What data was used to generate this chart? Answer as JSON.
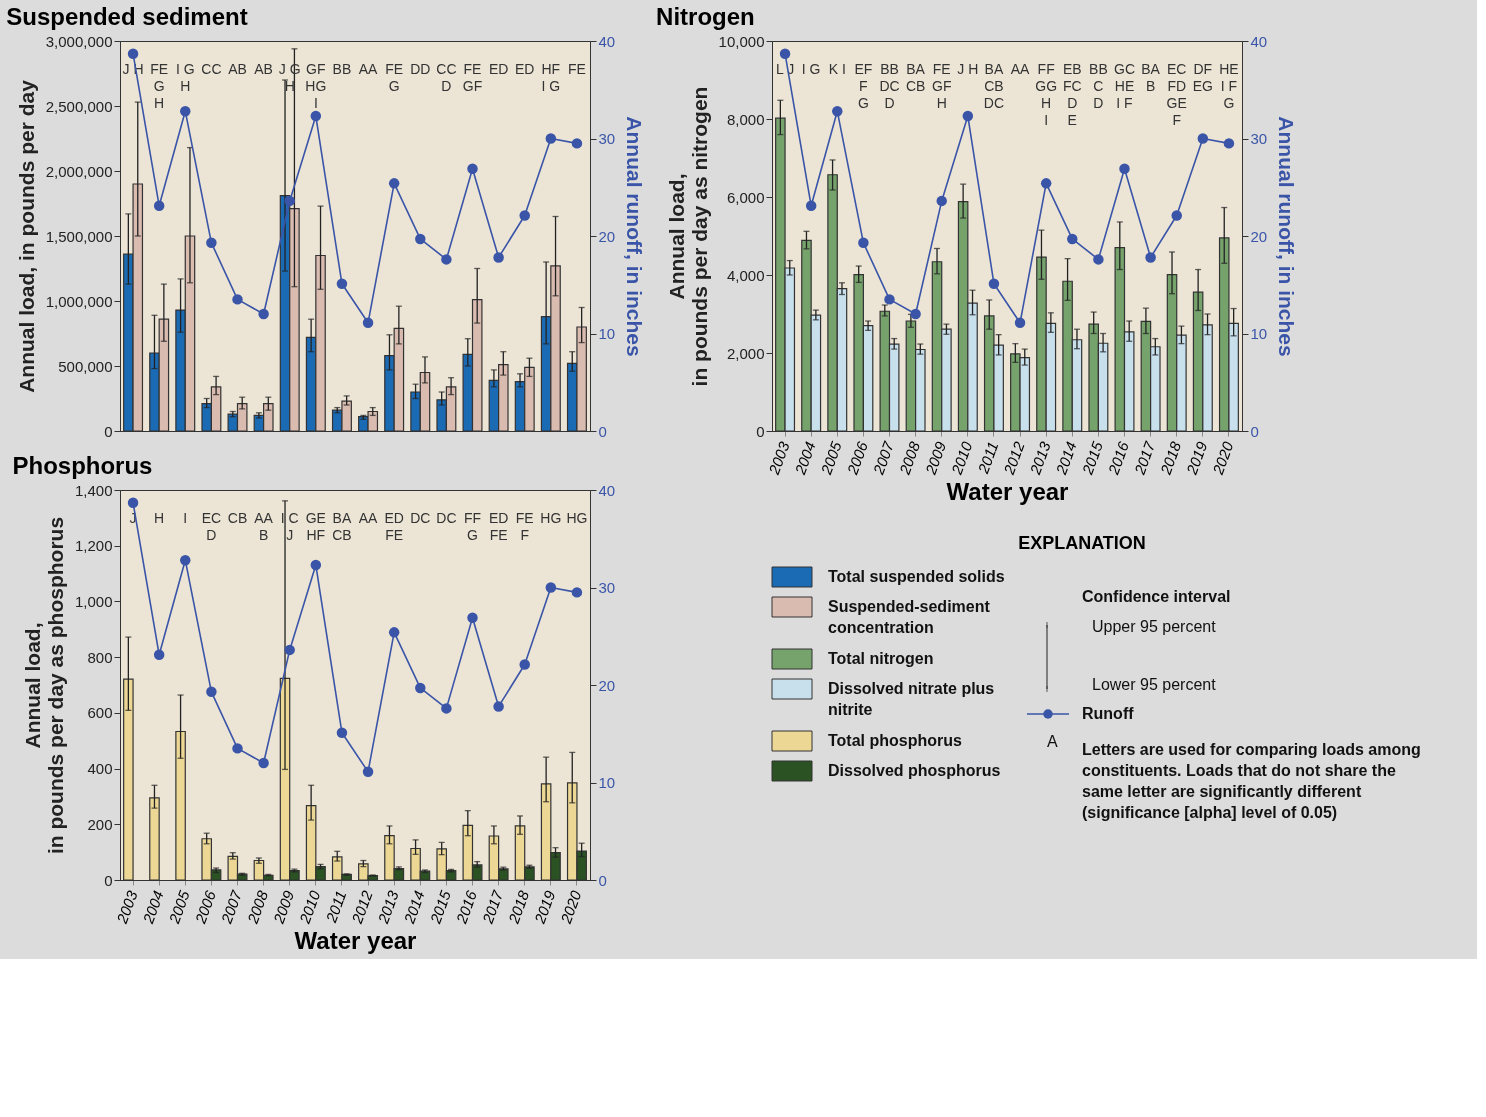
{
  "chart_data": [
    {
      "type": "bar",
      "title": "Suspended sediment",
      "ylabel": "Annual load, in pounds per day",
      "y2label": "Annual runoff, in inches",
      "categories": [
        "2003",
        "2004",
        "2005",
        "2006",
        "2007",
        "2008",
        "2009",
        "2010",
        "2011",
        "2012",
        "2013",
        "2014",
        "2015",
        "2016",
        "2017",
        "2018",
        "2019",
        "2020"
      ],
      "ylim": [
        0,
        3000000
      ],
      "yticks": [
        0,
        {
          "value": 500000,
          "label": "500,000"
        },
        {
          "value": 1000000,
          "label": "1,000,000"
        },
        {
          "value": 1500000,
          "label": "1,500,000"
        },
        {
          "value": 2000000,
          "label": "2,000,000"
        },
        {
          "value": 2500000,
          "label": "2,500,000"
        },
        {
          "value": 3000000,
          "label": "3,000,000"
        }
      ],
      "y2lim": [
        0,
        40
      ],
      "y2ticks": [
        0,
        10,
        20,
        30,
        40
      ],
      "tick_labels": "y",
      "legend": "bottom right",
      "series": [
        {
          "name": "Total suspended solids",
          "color": "#1b6ab4",
          "values": [
            1360000,
            600000,
            930000,
            210000,
            130000,
            120000,
            1810000,
            720000,
            160000,
            110000,
            580000,
            300000,
            240000,
            590000,
            390000,
            380000,
            880000,
            520000
          ],
          "errors": [
            [
              1130000,
              1670000
            ],
            [
              480000,
              890000
            ],
            [
              760000,
              1170000
            ],
            [
              180000,
              250000
            ],
            [
              110000,
              150000
            ],
            [
              100000,
              140000
            ],
            [
              1230000,
              2700000
            ],
            [
              610000,
              860000
            ],
            [
              140000,
              180000
            ],
            [
              90000,
              120000
            ],
            [
              470000,
              740000
            ],
            [
              250000,
              360000
            ],
            [
              200000,
              300000
            ],
            [
              500000,
              710000
            ],
            [
              340000,
              470000
            ],
            [
              340000,
              440000
            ],
            [
              670000,
              1300000
            ],
            [
              460000,
              610000
            ]
          ]
        },
        {
          "name": "Suspended-sediment concentration",
          "color": "#d9bbb0",
          "values": [
            1900000,
            860000,
            1500000,
            340000,
            210000,
            210000,
            1710000,
            1350000,
            230000,
            150000,
            790000,
            450000,
            340000,
            1010000,
            510000,
            490000,
            1270000,
            800000
          ],
          "errors": [
            [
              1500000,
              2530000
            ],
            [
              690000,
              1130000
            ],
            [
              1140000,
              2180000
            ],
            [
              280000,
              420000
            ],
            [
              170000,
              260000
            ],
            [
              160000,
              260000
            ],
            [
              1110000,
              2940000
            ],
            [
              1090000,
              1730000
            ],
            [
              200000,
              270000
            ],
            [
              120000,
              180000
            ],
            [
              670000,
              960000
            ],
            [
              370000,
              570000
            ],
            [
              280000,
              410000
            ],
            [
              830000,
              1250000
            ],
            [
              430000,
              610000
            ],
            [
              420000,
              560000
            ],
            [
              1040000,
              1650000
            ],
            [
              680000,
              950000
            ]
          ]
        },
        {
          "name": "Runoff",
          "type": "line",
          "axis": "y2",
          "color": "#3a55a8",
          "marker": "circle",
          "line_style": "solid",
          "values": [
            38.7,
            23.1,
            32.8,
            19.3,
            13.5,
            12.0,
            23.6,
            32.3,
            15.1,
            11.1,
            25.4,
            19.7,
            17.6,
            26.9,
            17.8,
            22.1,
            30.0,
            29.5
          ]
        }
      ],
      "annotations": [
        "J H",
        "FE\nG\nH",
        "I G\nH",
        "CC",
        "AB",
        "AB",
        "J G\nH",
        "GF\nHG\nI",
        "BB",
        "AA",
        "FE\nG",
        "DD",
        "CC\nD",
        "FE\nGF",
        "ED",
        "ED",
        "HF\nI G",
        "FE"
      ]
    },
    {
      "type": "bar",
      "title": "Nitrogen",
      "ylabel": "Annual load, in pounds per day as nitrogen",
      "y2label": "Annual runoff, in inches",
      "xlabel": "Water year",
      "categories": [
        "2003",
        "2004",
        "2005",
        "2006",
        "2007",
        "2008",
        "2009",
        "2010",
        "2011",
        "2012",
        "2013",
        "2014",
        "2015",
        "2016",
        "2017",
        "2018",
        "2019",
        "2020"
      ],
      "ylim": [
        0,
        10000
      ],
      "yticks": [
        0,
        {
          "value": 2000,
          "label": "2,000"
        },
        {
          "value": 4000,
          "label": "4,000"
        },
        {
          "value": 6000,
          "label": "6,000"
        },
        {
          "value": 8000,
          "label": "8,000"
        },
        {
          "value": 10000,
          "label": "10,000"
        }
      ],
      "y2lim": [
        0,
        40
      ],
      "y2ticks": [
        0,
        10,
        20,
        30,
        40
      ],
      "legend": "bottom",
      "series": [
        {
          "name": "Total nitrogen",
          "color": "#76a36c",
          "values": [
            8020,
            4890,
            6570,
            4010,
            3070,
            2820,
            4340,
            5880,
            2950,
            1980,
            4460,
            3840,
            2740,
            4700,
            2810,
            4010,
            3560,
            4950
          ],
          "errors": [
            [
              7600,
              8480
            ],
            [
              4670,
              5120
            ],
            [
              6180,
              6950
            ],
            [
              3810,
              4230
            ],
            [
              2950,
              3230
            ],
            [
              2660,
              2990
            ],
            [
              4030,
              4680
            ],
            [
              5460,
              6330
            ],
            [
              2610,
              3360
            ],
            [
              1760,
              2240
            ],
            [
              3890,
              5150
            ],
            [
              3350,
              4420
            ],
            [
              2500,
              3050
            ],
            [
              4140,
              5360
            ],
            [
              2500,
              3150
            ],
            [
              3520,
              4590
            ],
            [
              3090,
              4140
            ],
            [
              4300,
              5730
            ]
          ]
        },
        {
          "name": "Dissolved nitrate plus nitrite",
          "color": "#c8dfec",
          "values": [
            4180,
            2970,
            3650,
            2700,
            2230,
            2090,
            2610,
            3280,
            2200,
            1880,
            2760,
            2340,
            2250,
            2540,
            2160,
            2460,
            2720,
            2760
          ],
          "errors": [
            [
              4000,
              4370
            ],
            [
              2850,
              3100
            ],
            [
              3500,
              3800
            ],
            [
              2580,
              2820
            ],
            [
              2100,
              2370
            ],
            [
              1970,
              2230
            ],
            [
              2480,
              2740
            ],
            [
              2980,
              3610
            ],
            [
              1950,
              2470
            ],
            [
              1690,
              2100
            ],
            [
              2530,
              3030
            ],
            [
              2110,
              2610
            ],
            [
              2030,
              2500
            ],
            [
              2300,
              2820
            ],
            [
              1950,
              2370
            ],
            [
              2240,
              2690
            ],
            [
              2470,
              3000
            ],
            [
              2440,
              3140
            ]
          ]
        },
        {
          "name": "Runoff",
          "type": "line",
          "axis": "y2",
          "color": "#3a55a8",
          "marker": "circle",
          "line_style": "solid",
          "values": [
            38.7,
            23.1,
            32.8,
            19.3,
            13.5,
            12.0,
            23.6,
            32.3,
            15.1,
            11.1,
            25.4,
            19.7,
            17.6,
            26.9,
            17.8,
            22.1,
            30.0,
            29.5
          ]
        }
      ],
      "annotations": [
        "L J",
        "I G",
        "K I",
        "EF\nF\nG",
        "BB\nDC\nD",
        "BA\nCB",
        "FE\nGF\nH",
        "J H",
        "BA\nCB\nDC",
        "AA",
        "FF\nGG\nH\nI",
        "EB\nFC\nD\nE",
        "BB\nC\nD",
        "GC\nHE\nI F",
        "BA\nB",
        "EC\nFD\nGE\nF",
        "DF\nEG",
        "HE\nI F\nG"
      ]
    },
    {
      "type": "bar",
      "title": "Phosphorus",
      "ylabel": "Annual load, in pounds per day as phosphorus",
      "xlabel": "Water year",
      "categories": [
        "2003",
        "2004",
        "2005",
        "2006",
        "2007",
        "2008",
        "2009",
        "2010",
        "2011",
        "2012",
        "2013",
        "2014",
        "2015",
        "2016",
        "2017",
        "2018",
        "2019",
        "2020"
      ],
      "ylim": [
        0,
        1400
      ],
      "yticks": [
        0,
        200,
        400,
        600,
        800,
        {
          "value": 1000,
          "label": "1,000"
        },
        {
          "value": 1200,
          "label": "1,200"
        },
        {
          "value": 1400,
          "label": "1,400"
        }
      ],
      "y2lim": [
        0,
        40
      ],
      "y2ticks": [
        0,
        10,
        20,
        30,
        40
      ],
      "legend": "right",
      "series": [
        {
          "name": "Total phosphorus",
          "color": "#ecd794",
          "values": [
            721,
            295,
            533,
            148,
            85,
            70,
            724,
            267,
            83,
            58,
            159,
            113,
            112,
            196,
            158,
            194,
            345,
            349
          ],
          "errors": [
            [
              609,
              872
            ],
            [
              258,
              340
            ],
            [
              437,
              664
            ],
            [
              130,
              168
            ],
            [
              75,
              98
            ],
            [
              60,
              79
            ],
            [
              397,
              1361
            ],
            [
              215,
              340
            ],
            [
              68,
              103
            ],
            [
              48,
              70
            ],
            [
              130,
              194
            ],
            [
              92,
              144
            ],
            [
              91,
              135
            ],
            [
              159,
              249
            ],
            [
              130,
              194
            ],
            [
              164,
              230
            ],
            [
              281,
              441
            ],
            [
              277,
              458
            ]
          ]
        },
        {
          "name": "Dissolved phosphorus",
          "color": "#2a5223",
          "values": [
            null,
            null,
            null,
            36,
            21,
            17,
            34,
            48,
            20,
            16,
            41,
            32,
            34,
            54,
            40,
            47,
            98,
            104
          ],
          "errors": [
            null,
            null,
            null,
            [
              27,
              43
            ],
            [
              17,
              24
            ],
            [
              15,
              20
            ],
            [
              29,
              39
            ],
            [
              40,
              56
            ],
            [
              17,
              22
            ],
            [
              14,
              18
            ],
            [
              37,
              47
            ],
            [
              27,
              36
            ],
            [
              29,
              38
            ],
            [
              46,
              66
            ],
            [
              36,
              46
            ],
            [
              42,
              53
            ],
            [
              82,
              116
            ],
            [
              84,
              132
            ]
          ]
        },
        {
          "name": "Runoff",
          "type": "line",
          "axis": "y2",
          "color": "#3a55a8",
          "marker": "circle",
          "line_style": "solid",
          "values": [
            38.7,
            23.1,
            32.8,
            19.3,
            13.5,
            12.0,
            23.6,
            32.3,
            15.1,
            11.1,
            25.4,
            19.7,
            17.6,
            26.9,
            17.8,
            22.1,
            30.0,
            29.5
          ]
        }
      ],
      "annotations": [
        "J",
        "H",
        "I",
        "EC\nD",
        "CB",
        "AA\nB",
        "I C\nJ",
        "GE\nHF",
        "BA\nCB",
        "AA",
        "ED\nFE",
        "DC",
        "DC",
        "FF\nG",
        "ED\nFE",
        "FE\nF",
        "HG",
        "HG"
      ]
    },
    {
      "type": "other",
      "title": "EXPLANATION",
      "annotations": [
        "Confidence interval",
        "Upper 95 percent",
        "Lower 95 percent",
        "A",
        "Letters are used for comparing loads among constituents. Loads that do not share the same letter are significantly different (significance [alpha] level of 0.05)"
      ]
    }
  ]
}
